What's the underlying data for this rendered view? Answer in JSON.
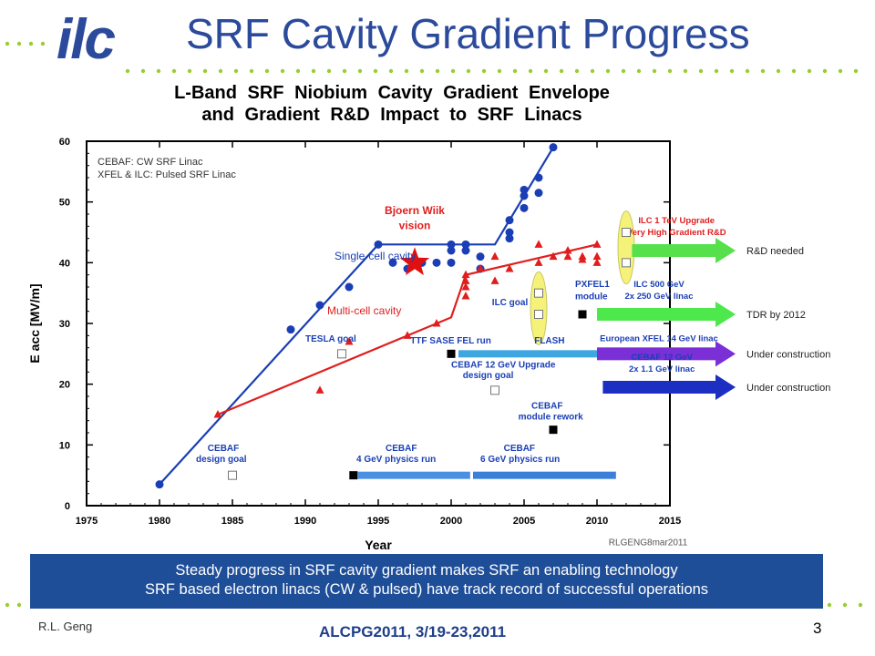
{
  "logo_text": "ilc",
  "slide_title": "SRF Cavity Gradient Progress",
  "colors": {
    "blue_series": "#1a3fb5",
    "red_series": "#e01e1e",
    "dots": "#3b5aa8",
    "banner": "#1f4e98"
  },
  "chart_data": {
    "type": "scatter",
    "title_line1": "L-Band SRF Niobium Cavity Gradient Envelope",
    "title_line2": "and Gradient R&D Impact to SRF Linacs",
    "xlabel": "Year",
    "ylabel": "E acc [MV/m]",
    "xlim": [
      1975,
      2015
    ],
    "ylim": [
      0,
      60
    ],
    "xticks": [
      1975,
      1980,
      1985,
      1990,
      1995,
      2000,
      2005,
      2010,
      2015
    ],
    "yticks": [
      0,
      10,
      20,
      30,
      40,
      50,
      60
    ],
    "legend_box": [
      "CEBAF: CW SRF Linac",
      "XFEL & ILC: Pulsed SRF Linac"
    ],
    "series": [
      {
        "name": "Single-cell cavity",
        "color": "#1a3fb5",
        "marker": "circle",
        "points": [
          [
            1980,
            3.5
          ],
          [
            1989,
            29
          ],
          [
            1991,
            33
          ],
          [
            1993,
            36
          ],
          [
            1995,
            43
          ],
          [
            1996,
            40
          ],
          [
            1997,
            39
          ],
          [
            1998,
            40
          ],
          [
            1999,
            40
          ],
          [
            2000,
            43
          ],
          [
            2000,
            42
          ],
          [
            2000,
            40
          ],
          [
            2001,
            43
          ],
          [
            2001,
            42
          ],
          [
            2002,
            41
          ],
          [
            2002,
            39
          ],
          [
            2004,
            47
          ],
          [
            2004,
            45
          ],
          [
            2004,
            44
          ],
          [
            2005,
            52
          ],
          [
            2005,
            51
          ],
          [
            2005,
            49
          ],
          [
            2006,
            54
          ],
          [
            2006,
            51.5
          ],
          [
            2007,
            59
          ]
        ],
        "envelope": [
          [
            1980,
            3.5
          ],
          [
            1995,
            43
          ],
          [
            2003,
            43
          ],
          [
            2007,
            59
          ]
        ]
      },
      {
        "name": "Multi-cell cavity",
        "color": "#e01e1e",
        "marker": "triangle",
        "points": [
          [
            1984,
            15
          ],
          [
            1991,
            19
          ],
          [
            1993,
            27
          ],
          [
            1997,
            28
          ],
          [
            1999,
            30
          ],
          [
            2001,
            34.5
          ],
          [
            2001,
            36
          ],
          [
            2001,
            37
          ],
          [
            2001,
            38
          ],
          [
            2002,
            39
          ],
          [
            2003,
            41
          ],
          [
            2003,
            37
          ],
          [
            2004,
            39
          ],
          [
            2006,
            43
          ],
          [
            2006,
            40
          ],
          [
            2007,
            41
          ],
          [
            2008,
            41
          ],
          [
            2008,
            42
          ],
          [
            2009,
            41
          ],
          [
            2009,
            40.5
          ],
          [
            2010,
            40
          ],
          [
            2010,
            41
          ],
          [
            2010,
            43
          ]
        ],
        "envelope": [
          [
            1984,
            15
          ],
          [
            1985,
            16
          ],
          [
            2000,
            31
          ],
          [
            2001,
            38
          ],
          [
            2010,
            43
          ]
        ]
      }
    ],
    "star": {
      "x": 1997.5,
      "y": 40,
      "label_line1": "Bjoern Wiik",
      "label_line2": "vision"
    },
    "annotations": [
      {
        "id": "single-cell-label",
        "text": "Single-cell cavity",
        "x": 1992,
        "y": 40.5,
        "color": "#1a3fb5"
      },
      {
        "id": "multi-cell-label",
        "text": "Multi-cell cavity",
        "x": 1991.5,
        "y": 31.5,
        "color": "#e01e1e"
      },
      {
        "id": "tesla-goal",
        "text": "TESLA goal",
        "x": 1990,
        "y": 27,
        "color": "#1a3fb5"
      },
      {
        "id": "ilc-goal",
        "text": "ILC goal",
        "x": 2002.8,
        "y": 33,
        "color": "#1a3fb5"
      },
      {
        "id": "pxfel1",
        "text": "PXFEL1",
        "x": 2008.5,
        "y": 36,
        "color": "#1a3fb5"
      },
      {
        "id": "pxfel1-b",
        "text": "module",
        "x": 2008.5,
        "y": 34,
        "color": "#1a3fb5"
      },
      {
        "id": "ttf",
        "text": "TTF SASE FEL run",
        "x": 1997.2,
        "y": 26.7,
        "color": "#1a3fb5"
      },
      {
        "id": "flash",
        "text": "FLASH",
        "x": 2005.7,
        "y": 26.7,
        "color": "#1a3fb5"
      },
      {
        "id": "cebaf12-goal",
        "text": "CEBAF 12 GeV Upgrade",
        "x": 2000,
        "y": 22.7,
        "color": "#1a3fb5"
      },
      {
        "id": "cebaf12-goal-b",
        "text": "design goal",
        "x": 2000.8,
        "y": 21,
        "color": "#1a3fb5"
      },
      {
        "id": "cebaf-rework",
        "text": "CEBAF",
        "x": 2005.5,
        "y": 16,
        "color": "#1a3fb5"
      },
      {
        "id": "cebaf-rework-b",
        "text": "module rework",
        "x": 2004.6,
        "y": 14.2,
        "color": "#1a3fb5"
      },
      {
        "id": "cebaf-design",
        "text": "CEBAF",
        "x": 1983.3,
        "y": 9,
        "color": "#1a3fb5"
      },
      {
        "id": "cebaf-design-b",
        "text": "design goal",
        "x": 1982.5,
        "y": 7.2,
        "color": "#1a3fb5"
      },
      {
        "id": "cebaf4",
        "text": "CEBAF",
        "x": 1995.5,
        "y": 9,
        "color": "#1a3fb5"
      },
      {
        "id": "cebaf4-b",
        "text": "4 GeV physics run",
        "x": 1993.5,
        "y": 7.2,
        "color": "#1a3fb5"
      },
      {
        "id": "cebaf6",
        "text": "CEBAF",
        "x": 2003.6,
        "y": 9,
        "color": "#1a3fb5"
      },
      {
        "id": "cebaf6-b",
        "text": "6 GeV physics run",
        "x": 2002,
        "y": 7.2,
        "color": "#1a3fb5"
      },
      {
        "id": "credit",
        "text": "RLGENG8mar2011",
        "x": 2010.8,
        "y": -6.5,
        "color": "#555555"
      }
    ],
    "programs": [
      {
        "id": "tesla",
        "x": 1992.5,
        "y": 25,
        "marker": "open-square"
      },
      {
        "id": "ttf-start",
        "x": 2000,
        "y": 25,
        "marker": "filled-square"
      },
      {
        "id": "cebaf12",
        "x": 2003,
        "y": 19,
        "marker": "open-square"
      },
      {
        "id": "cebaf-rework",
        "x": 2007,
        "y": 12.5,
        "marker": "filled-square"
      },
      {
        "id": "cebaf-design",
        "x": 1985,
        "y": 5,
        "marker": "open-square"
      },
      {
        "id": "cebaf4",
        "x": 1993.3,
        "y": 5,
        "marker": "filled-square"
      },
      {
        "id": "pxfel1",
        "x": 2009,
        "y": 31.5,
        "marker": "filled-square"
      },
      {
        "id": "ilc-goal-a",
        "x": 2006,
        "y": 35,
        "marker": "open-square"
      },
      {
        "id": "ilc-goal-b",
        "x": 2006,
        "y": 31.5,
        "marker": "open-square"
      },
      {
        "id": "ilc-up-a",
        "x": 2012,
        "y": 45,
        "marker": "open-square"
      },
      {
        "id": "ilc-up-b",
        "x": 2012,
        "y": 40,
        "marker": "open-square"
      }
    ],
    "bars": [
      {
        "id": "bar-ttf",
        "from": 2000.5,
        "to": 2010,
        "y": 25,
        "color": "#3fa7e0"
      },
      {
        "id": "bar-cebaf4",
        "from": 1993.6,
        "to": 2001.3,
        "y": 5,
        "color": "#4a90e2"
      },
      {
        "id": "bar-cebaf6",
        "from": 2001.5,
        "to": 2011.3,
        "y": 5,
        "color": "#3b7fd8"
      }
    ],
    "arrows": [
      {
        "id": "arrow-ilc1tev",
        "from": 2012.4,
        "to": 2019.5,
        "y": 42,
        "color": "#56e04c",
        "label_line1": "ILC 1 TeV Upgrade",
        "label_line2": "Very High Gradient R&D",
        "label_color": "#e01e1e",
        "status": "R&D needed"
      },
      {
        "id": "arrow-ilc500",
        "from": 2010,
        "to": 2019.5,
        "y": 31.5,
        "color": "#4ce84c",
        "label_line1": "ILC 500 GeV",
        "label_line2": "2x 250 GeV linac",
        "label_color": "#1a3fb5",
        "status": "TDR by 2012"
      },
      {
        "id": "arrow-xfel",
        "from": 2010,
        "to": 2019.5,
        "y": 25,
        "color": "#7b2fd6",
        "label_line1": "European XFEL 14 GeV linac",
        "label_line2": "",
        "label_color": "#1a3fb5",
        "status": "Under construction"
      },
      {
        "id": "arrow-cebaf12",
        "from": 2010.4,
        "to": 2019.5,
        "y": 19.5,
        "color": "#1c2fc2",
        "label_line1": "CEBAF 12 GeV",
        "label_line2": "2x 1.1 GeV linac",
        "label_color": "#1a3fb5",
        "status": "Under construction"
      }
    ],
    "highlights": [
      {
        "id": "hl-ilc-goal",
        "x": 2006,
        "y": 32.5,
        "color": "#f5f27a"
      },
      {
        "id": "hl-ilc-upgrade",
        "x": 2012,
        "y": 42.5,
        "color": "#f5f27a"
      }
    ]
  },
  "banner": {
    "line1": "Steady progress in SRF cavity gradient makes SRF an enabling technology",
    "line2": "SRF based electron linacs (CW & pulsed) have track record of successful operations"
  },
  "footer": {
    "author": "R.L. Geng",
    "conference": "ALCPG2011, 3/19-23,2011",
    "page": "3"
  }
}
